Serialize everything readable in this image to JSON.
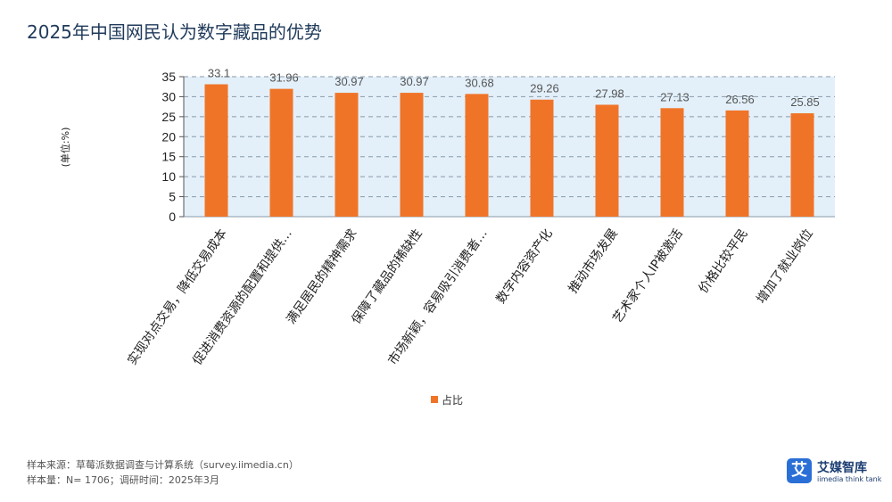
{
  "page": {
    "title": "2025年中国网民认为数字藏品的优势"
  },
  "chart_data": {
    "type": "bar",
    "categories": [
      "实现对点交易，降低交易成本",
      "促进消费资源的配置和提供…",
      "满足居民的精神需求",
      "保障了藏品的稀缺性",
      "市场新颖，容易吸引消费者…",
      "数字内容资产化",
      "推动市场发展",
      "艺术家个人IP被激活",
      "价格比较平民",
      "增加了就业岗位"
    ],
    "series": [
      {
        "name": "占比",
        "values": [
          33.1,
          31.96,
          30.97,
          30.97,
          30.68,
          29.26,
          27.98,
          27.13,
          26.56,
          25.85
        ]
      }
    ],
    "value_labels": [
      "33.1",
      "31.96",
      "30.97",
      "30.97",
      "30.68",
      "29.26",
      "27.98",
      "27.13",
      "26.56",
      "25.85"
    ],
    "ylabel": "(单位:%)",
    "ylim": [
      0,
      35
    ],
    "yticks": [
      0,
      5,
      10,
      15,
      20,
      25,
      30,
      35
    ],
    "grid": true,
    "legend": "bottom-center",
    "colors": {
      "bar": "#f07428",
      "plot_bg": "#e3f0fa",
      "grid": "#8a9aaa"
    }
  },
  "footer": {
    "source_line": "样本来源：草莓派数据调查与计算系统（survey.iimedia.cn）",
    "sample_line": "样本量：N= 1706；调研时间：2025年3月"
  },
  "logo": {
    "mark": "艾",
    "name": "艾媒智库",
    "sub": "iimedia think tank"
  }
}
